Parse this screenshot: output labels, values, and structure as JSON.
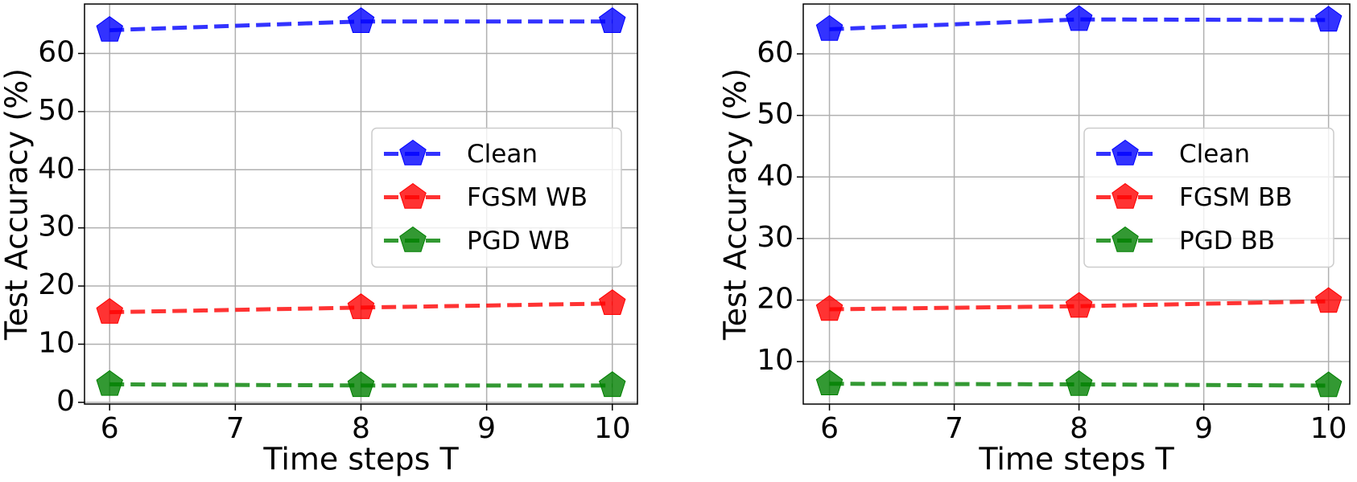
{
  "chart_data": [
    {
      "type": "line",
      "x_label": "Time steps T",
      "y_label": "Test Accuracy (%)",
      "x": [
        6,
        8,
        10
      ],
      "xlim": [
        5.8,
        10.2
      ],
      "xticks": [
        6,
        7,
        8,
        9,
        10
      ],
      "ylim": [
        -0.3,
        68.5
      ],
      "yticks": [
        0,
        10,
        20,
        30,
        40,
        50,
        60
      ],
      "grid": true,
      "legend": "center right",
      "series": [
        {
          "name": "Clean",
          "color": "#0000ff",
          "values": [
            64,
            65.5,
            65.5
          ]
        },
        {
          "name": "FGSM WB",
          "color": "#ff0000",
          "values": [
            15.5,
            16.3,
            17
          ]
        },
        {
          "name": "PGD WB",
          "color": "#008000",
          "values": [
            3.1,
            2.9,
            2.9
          ]
        }
      ]
    },
    {
      "type": "line",
      "x_label": "Time steps T",
      "y_label": "Test Accuracy (%)",
      "x": [
        6,
        8,
        10
      ],
      "xlim": [
        5.79,
        10.17
      ],
      "xticks": [
        6,
        7,
        8,
        9,
        10
      ],
      "ylim": [
        3.1,
        68.1
      ],
      "yticks": [
        10,
        20,
        30,
        40,
        50,
        60
      ],
      "grid": true,
      "legend": "center right",
      "series": [
        {
          "name": "Clean",
          "color": "#0000ff",
          "values": [
            64,
            65.6,
            65.5
          ]
        },
        {
          "name": "FGSM BB",
          "color": "#ff0000",
          "values": [
            18.5,
            19,
            19.8
          ]
        },
        {
          "name": "PGD BB",
          "color": "#008000",
          "values": [
            6.4,
            6.3,
            6.1
          ]
        }
      ]
    }
  ]
}
